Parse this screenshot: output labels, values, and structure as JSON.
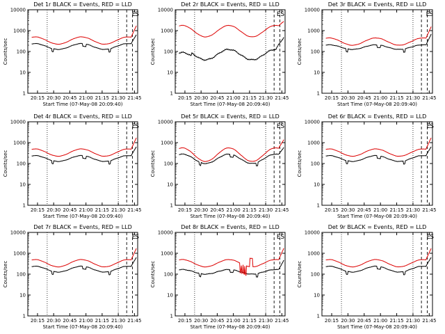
{
  "figure": {
    "xlabel": "Start Time (07-May-08 20:09:40)",
    "ylabel": "Counts/sec"
  },
  "chart_data": [
    {
      "type": "line",
      "title": "Det 1r BLACK = Events, RED = LLD",
      "profile": "standard",
      "xlim": [
        20.1,
        21.8
      ],
      "ylim": [
        1,
        10000
      ],
      "yscale": "log",
      "x_ticks": [
        "20:15",
        "20:30",
        "20:45",
        "21:00",
        "21:15",
        "21:30",
        "21:45"
      ],
      "y_ticks": [
        "1",
        "10",
        "100",
        "1000",
        "10000"
      ],
      "series": [
        {
          "name": "Events",
          "color": "#000000"
        },
        {
          "name": "LLD",
          "color": "#dd0000"
        }
      ],
      "annotations": [
        {
          "x": 21.74,
          "text": "E"
        },
        {
          "x": 21.79,
          "text": "S"
        }
      ]
    },
    {
      "type": "line",
      "title": "Det 2r BLACK = Events, RED = LLD",
      "profile": "det2",
      "xlim": [
        20.1,
        21.8
      ],
      "ylim": [
        1,
        10000
      ],
      "yscale": "log",
      "x_ticks": [
        "20:15",
        "20:30",
        "20:45",
        "21:00",
        "21:15",
        "21:30",
        "21:45"
      ],
      "y_ticks": [
        "1",
        "10",
        "100",
        "1000",
        "10000"
      ],
      "series": [
        {
          "name": "Events",
          "color": "#000000"
        },
        {
          "name": "LLD",
          "color": "#dd0000"
        }
      ],
      "annotations": [
        {
          "x": 21.7,
          "text": "E"
        },
        {
          "x": 21.76,
          "text": "S"
        }
      ]
    },
    {
      "type": "line",
      "title": "Det 3r BLACK = Events, RED = LLD",
      "profile": "det3",
      "xlim": [
        20.1,
        21.8
      ],
      "ylim": [
        1,
        10000
      ],
      "yscale": "log",
      "x_ticks": [
        "20:15",
        "20:30",
        "20:45",
        "21:00",
        "21:15",
        "21:30",
        "21:45"
      ],
      "y_ticks": [
        "1",
        "10",
        "100",
        "1000",
        "10000"
      ],
      "series": [
        {
          "name": "Events",
          "color": "#000000"
        },
        {
          "name": "LLD",
          "color": "#dd0000"
        }
      ],
      "annotations": [
        {
          "x": 21.73,
          "text": "E"
        },
        {
          "x": 21.78,
          "text": "S"
        }
      ]
    },
    {
      "type": "line",
      "title": "Det 4r BLACK = Events, RED = LLD",
      "profile": "standard",
      "xlim": [
        20.1,
        21.8
      ],
      "ylim": [
        1,
        10000
      ],
      "yscale": "log",
      "x_ticks": [
        "20:15",
        "20:30",
        "20:45",
        "21:00",
        "21:15",
        "21:30",
        "21:45"
      ],
      "y_ticks": [
        "1",
        "10",
        "100",
        "1000",
        "10000"
      ],
      "series": [
        {
          "name": "Events",
          "color": "#000000"
        },
        {
          "name": "LLD",
          "color": "#dd0000"
        }
      ],
      "annotations": [
        {
          "x": 21.74,
          "text": "E"
        },
        {
          "x": 21.79,
          "text": "S"
        }
      ]
    },
    {
      "type": "line",
      "title": "Det 5r BLACK = Events, RED = LLD",
      "profile": "det5",
      "xlim": [
        20.1,
        21.8
      ],
      "ylim": [
        1,
        10000
      ],
      "yscale": "log",
      "x_ticks": [
        "20:15",
        "20:30",
        "20:45",
        "21:00",
        "21:15",
        "21:30",
        "21:45"
      ],
      "y_ticks": [
        "1",
        "10",
        "100",
        "1000",
        "10000"
      ],
      "series": [
        {
          "name": "Events",
          "color": "#000000"
        },
        {
          "name": "LLD",
          "color": "#dd0000"
        }
      ],
      "annotations": [
        {
          "x": 21.7,
          "text": "E"
        },
        {
          "x": 21.76,
          "text": "S"
        }
      ]
    },
    {
      "type": "line",
      "title": "Det 6r BLACK = Events, RED = LLD",
      "profile": "standard",
      "xlim": [
        20.1,
        21.8
      ],
      "ylim": [
        1,
        10000
      ],
      "yscale": "log",
      "x_ticks": [
        "20:15",
        "20:30",
        "20:45",
        "21:00",
        "21:15",
        "21:30",
        "21:45"
      ],
      "y_ticks": [
        "1",
        "10",
        "100",
        "1000",
        "10000"
      ],
      "series": [
        {
          "name": "Events",
          "color": "#000000"
        },
        {
          "name": "LLD",
          "color": "#dd0000"
        }
      ],
      "annotations": [
        {
          "x": 21.74,
          "text": "E"
        },
        {
          "x": 21.79,
          "text": "S"
        }
      ]
    },
    {
      "type": "line",
      "title": "Det 7r BLACK = Events, RED = LLD",
      "profile": "standard",
      "xlim": [
        20.1,
        21.8
      ],
      "ylim": [
        1,
        10000
      ],
      "yscale": "log",
      "x_ticks": [
        "20:15",
        "20:30",
        "20:45",
        "21:00",
        "21:15",
        "21:30",
        "21:45"
      ],
      "y_ticks": [
        "1",
        "10",
        "100",
        "1000",
        "10000"
      ],
      "series": [
        {
          "name": "Events",
          "color": "#000000"
        },
        {
          "name": "LLD",
          "color": "#dd0000"
        }
      ],
      "annotations": [
        {
          "x": 21.74,
          "text": "E"
        },
        {
          "x": 21.79,
          "text": "S"
        }
      ]
    },
    {
      "type": "line",
      "title": "Det 8r BLACK = Events, RED = LLD",
      "profile": "det8",
      "xlim": [
        20.1,
        21.8
      ],
      "ylim": [
        1,
        10000
      ],
      "yscale": "log",
      "x_ticks": [
        "20:15",
        "20:30",
        "20:45",
        "21:00",
        "21:15",
        "21:30",
        "21:45"
      ],
      "y_ticks": [
        "1",
        "10",
        "100",
        "1000",
        "10000"
      ],
      "series": [
        {
          "name": "Events",
          "color": "#000000"
        },
        {
          "name": "LLD",
          "color": "#dd0000"
        }
      ],
      "annotations": [
        {
          "x": 21.7,
          "text": "E"
        },
        {
          "x": 21.76,
          "text": "S"
        }
      ]
    },
    {
      "type": "line",
      "title": "Det 9r BLACK = Events, RED = LLD",
      "profile": "standard",
      "xlim": [
        20.1,
        21.8
      ],
      "ylim": [
        1,
        10000
      ],
      "yscale": "log",
      "x_ticks": [
        "20:15",
        "20:30",
        "20:45",
        "21:00",
        "21:15",
        "21:30",
        "21:45"
      ],
      "y_ticks": [
        "1",
        "10",
        "100",
        "1000",
        "10000"
      ],
      "series": [
        {
          "name": "Events",
          "color": "#000000"
        },
        {
          "name": "LLD",
          "color": "#dd0000"
        }
      ],
      "annotations": [
        {
          "x": 21.74,
          "text": "E"
        },
        {
          "x": 21.79,
          "text": "S"
        }
      ]
    }
  ],
  "markers": {
    "dotted_x": [
      20.4,
      21.5
    ],
    "dashed_x": [
      21.63,
      21.72
    ]
  }
}
